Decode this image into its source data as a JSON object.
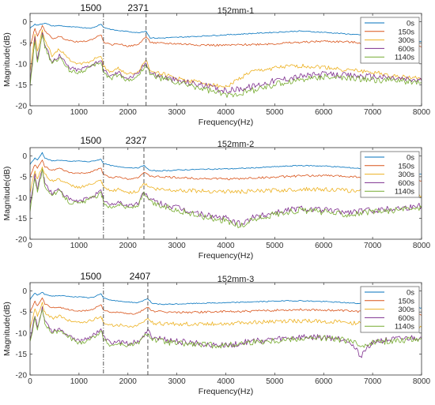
{
  "chart_data": [
    {
      "type": "line",
      "title": "152mm-1",
      "xlabel": "Frequency(Hz)",
      "ylabel": "Magnitude(dB)",
      "xlim": [
        0,
        8000
      ],
      "ylim": [
        -20,
        2
      ],
      "xticks": [
        "0",
        "1000",
        "2000",
        "3000",
        "4000",
        "5000",
        "6000",
        "7000",
        "8000"
      ],
      "yticks": [
        "0",
        "-5",
        "-10",
        "-15",
        "-20"
      ],
      "legend_position": "top-right",
      "markers": [
        {
          "x": 1500,
          "label": "1500",
          "style": "dashdot"
        },
        {
          "x": 2371,
          "label": "2371",
          "style": "dashed"
        }
      ],
      "x": [
        0,
        100,
        150,
        250,
        300,
        450,
        600,
        800,
        1000,
        1200,
        1300,
        1450,
        1500,
        1650,
        1800,
        2000,
        2200,
        2371,
        2450,
        2600,
        3000,
        3500,
        4000,
        4500,
        5000,
        5500,
        6000,
        6500,
        7000,
        7500,
        8000
      ],
      "series": [
        {
          "name": "0s",
          "color": "#0072BD",
          "values": [
            -1.5,
            -0.6,
            -0.8,
            -0.5,
            -0.3,
            -1.0,
            -0.9,
            -1.2,
            -1.3,
            -1.5,
            -1.4,
            -0.5,
            -1.3,
            -1.8,
            -2.1,
            -2.3,
            -2.6,
            -2.2,
            -3.8,
            -3.9,
            -3.7,
            -3.4,
            -3.1,
            -2.8,
            -2.5,
            -2.2,
            -2.5,
            -2.9,
            -3.4,
            -4.0,
            -4.6
          ]
        },
        {
          "name": "150s",
          "color": "#D95319",
          "values": [
            -6.0,
            -1.5,
            -3.5,
            -1.0,
            -2.0,
            -4.0,
            -3.5,
            -4.5,
            -4.8,
            -4.5,
            -4.0,
            -3.0,
            -4.8,
            -5.5,
            -5.2,
            -5.8,
            -5.5,
            -3.5,
            -4.8,
            -5.1,
            -5.2,
            -5.5,
            -5.6,
            -5.4,
            -5.2,
            -4.9,
            -4.6,
            -4.8,
            -5.2,
            -5.6,
            -6.0
          ]
        },
        {
          "name": "300s",
          "color": "#EDB120",
          "values": [
            -12.0,
            -3.0,
            -7.0,
            -2.0,
            -4.5,
            -8.0,
            -6.5,
            -9.0,
            -10.0,
            -9.5,
            -9.0,
            -8.0,
            -10.5,
            -12.0,
            -11.0,
            -12.5,
            -12.0,
            -9.0,
            -11.5,
            -12.0,
            -13.5,
            -14.5,
            -15.5,
            -12.0,
            -11.0,
            -10.5,
            -10.8,
            -11.5,
            -12.0,
            -13.0,
            -13.5
          ]
        },
        {
          "name": "600s",
          "color": "#7E2F8E",
          "values": [
            -14.0,
            -4.0,
            -9.0,
            -2.5,
            -5.5,
            -9.5,
            -8.0,
            -11.0,
            -11.5,
            -10.5,
            -10.0,
            -9.0,
            -11.5,
            -13.0,
            -12.0,
            -13.5,
            -12.5,
            -9.5,
            -12.0,
            -12.8,
            -14.0,
            -15.0,
            -16.5,
            -15.5,
            -14.0,
            -13.0,
            -12.5,
            -12.8,
            -13.0,
            -13.5,
            -14.0
          ]
        },
        {
          "name": "1140s",
          "color": "#77AC30",
          "values": [
            -15.0,
            -4.5,
            -9.5,
            -2.8,
            -6.0,
            -10.0,
            -8.5,
            -11.5,
            -12.0,
            -11.0,
            -10.5,
            -9.5,
            -12.0,
            -13.5,
            -12.5,
            -14.0,
            -13.0,
            -10.0,
            -12.5,
            -13.2,
            -14.5,
            -15.8,
            -17.5,
            -16.5,
            -15.0,
            -13.8,
            -13.0,
            -13.5,
            -13.8,
            -14.0,
            -14.5
          ]
        }
      ]
    },
    {
      "type": "line",
      "title": "152mm-2",
      "xlabel": "Frequency(Hz)",
      "ylabel": "Magnitude(dB)",
      "xlim": [
        0,
        8000
      ],
      "ylim": [
        -20,
        2
      ],
      "xticks": [
        "0",
        "1000",
        "2000",
        "3000",
        "4000",
        "5000",
        "6000",
        "7000",
        "8000"
      ],
      "yticks": [
        "0",
        "-5",
        "-10",
        "-15",
        "-20"
      ],
      "legend_position": "top-right",
      "markers": [
        {
          "x": 1500,
          "label": "1500",
          "style": "dashdot"
        },
        {
          "x": 2327,
          "label": "2327",
          "style": "dashed"
        }
      ],
      "x": [
        0,
        100,
        150,
        250,
        300,
        450,
        600,
        800,
        1000,
        1200,
        1300,
        1450,
        1500,
        1650,
        1800,
        2000,
        2200,
        2327,
        2450,
        2600,
        3000,
        3500,
        4000,
        4300,
        4500,
        5000,
        5500,
        6000,
        6500,
        7000,
        7500,
        8000
      ],
      "series": [
        {
          "name": "0s",
          "color": "#0072BD",
          "values": [
            -2.0,
            -0.5,
            -1.0,
            0.8,
            -0.5,
            -1.2,
            -1.0,
            -1.3,
            -1.2,
            -1.4,
            -1.2,
            -0.8,
            -1.8,
            -2.3,
            -2.6,
            -2.8,
            -2.9,
            -2.3,
            -3.5,
            -3.6,
            -3.4,
            -3.2,
            -3.1,
            -3.0,
            -2.9,
            -2.6,
            -2.3,
            -2.4,
            -2.8,
            -3.2,
            -3.8,
            -4.4
          ]
        },
        {
          "name": "150s",
          "color": "#D95319",
          "values": [
            -5.0,
            -2.0,
            -3.0,
            -1.0,
            -2.5,
            -3.5,
            -3.0,
            -4.0,
            -4.2,
            -4.0,
            -3.5,
            -3.0,
            -4.5,
            -5.2,
            -5.0,
            -5.5,
            -5.2,
            -4.0,
            -4.8,
            -5.0,
            -5.2,
            -5.4,
            -5.5,
            -5.5,
            -5.3,
            -5.1,
            -4.8,
            -4.7,
            -4.9,
            -5.2,
            -5.6,
            -6.0
          ]
        },
        {
          "name": "300s",
          "color": "#EDB120",
          "values": [
            -9.0,
            -3.5,
            -5.5,
            -2.5,
            -4.5,
            -6.0,
            -5.5,
            -7.0,
            -7.5,
            -7.0,
            -6.5,
            -6.0,
            -7.5,
            -8.5,
            -8.0,
            -8.8,
            -8.5,
            -6.5,
            -7.5,
            -8.0,
            -8.2,
            -8.4,
            -8.5,
            -8.6,
            -8.5,
            -8.3,
            -8.0,
            -8.0,
            -8.3,
            -8.8,
            -9.2,
            -9.6
          ]
        },
        {
          "name": "600s",
          "color": "#7E2F8E",
          "values": [
            -12.0,
            -4.5,
            -8.0,
            -3.0,
            -6.5,
            -9.0,
            -8.0,
            -10.5,
            -11.0,
            -10.0,
            -9.5,
            -8.5,
            -10.5,
            -12.0,
            -11.0,
            -12.0,
            -11.5,
            -8.5,
            -10.5,
            -11.2,
            -12.5,
            -14.0,
            -15.0,
            -16.5,
            -15.0,
            -13.5,
            -12.5,
            -13.0,
            -13.5,
            -13.0,
            -12.5,
            -12.0
          ]
        },
        {
          "name": "1140s",
          "color": "#77AC30",
          "values": [
            -13.0,
            -5.0,
            -8.5,
            -3.5,
            -7.0,
            -9.5,
            -8.5,
            -11.0,
            -11.5,
            -10.5,
            -10.0,
            -9.0,
            -11.0,
            -12.5,
            -11.5,
            -12.5,
            -12.0,
            -9.0,
            -11.0,
            -11.8,
            -13.0,
            -14.5,
            -15.5,
            -17.0,
            -15.5,
            -14.0,
            -13.0,
            -13.5,
            -14.0,
            -13.5,
            -13.0,
            -12.5
          ]
        }
      ]
    },
    {
      "type": "line",
      "title": "152mm-3",
      "xlabel": "Frequency(Hz)",
      "ylabel": "Magnitude(dB)",
      "xlim": [
        0,
        8000
      ],
      "ylim": [
        -20,
        2
      ],
      "xticks": [
        "0",
        "1000",
        "2000",
        "3000",
        "4000",
        "5000",
        "6000",
        "7000",
        "8000"
      ],
      "yticks": [
        "0",
        "-5",
        "-10",
        "-15",
        "-20"
      ],
      "legend_position": "top-right",
      "markers": [
        {
          "x": 1500,
          "label": "1500",
          "style": "dashdot"
        },
        {
          "x": 2407,
          "label": "2407",
          "style": "dashed"
        }
      ],
      "x": [
        0,
        100,
        150,
        250,
        300,
        450,
        600,
        800,
        1000,
        1200,
        1300,
        1450,
        1500,
        1650,
        1800,
        2000,
        2200,
        2407,
        2500,
        2700,
        3000,
        3500,
        4000,
        4500,
        5000,
        5500,
        6000,
        6500,
        6750,
        7000,
        7500,
        8000
      ],
      "series": [
        {
          "name": "0s",
          "color": "#0072BD",
          "values": [
            -2.0,
            -0.5,
            -1.0,
            -0.3,
            -0.8,
            -1.2,
            -1.1,
            -1.3,
            -1.4,
            -1.6,
            -1.5,
            -0.6,
            -1.6,
            -2.2,
            -2.4,
            -2.6,
            -2.8,
            -1.8,
            -3.0,
            -3.2,
            -3.1,
            -2.9,
            -2.8,
            -2.6,
            -2.4,
            -2.3,
            -2.5,
            -2.8,
            -3.0,
            -3.2,
            -3.6,
            -4.0
          ]
        },
        {
          "name": "150s",
          "color": "#D95319",
          "values": [
            -5.0,
            -2.5,
            -3.5,
            -1.5,
            -3.0,
            -4.0,
            -3.8,
            -4.5,
            -4.8,
            -4.6,
            -4.2,
            -3.2,
            -4.5,
            -5.2,
            -5.0,
            -5.5,
            -5.3,
            -3.8,
            -4.8,
            -5.0,
            -5.1,
            -5.0,
            -4.9,
            -4.8,
            -4.6,
            -4.4,
            -4.5,
            -4.7,
            -4.9,
            -5.1,
            -5.4,
            -5.8
          ]
        },
        {
          "name": "300s",
          "color": "#EDB120",
          "values": [
            -9.0,
            -4.0,
            -6.0,
            -3.0,
            -5.0,
            -6.5,
            -6.0,
            -7.0,
            -7.5,
            -7.2,
            -6.8,
            -6.0,
            -7.5,
            -8.2,
            -8.0,
            -8.5,
            -8.3,
            -6.5,
            -7.5,
            -7.8,
            -7.9,
            -7.8,
            -7.7,
            -7.5,
            -7.3,
            -7.1,
            -7.2,
            -7.5,
            -7.7,
            -7.9,
            -8.2,
            -8.6
          ]
        },
        {
          "name": "600s",
          "color": "#7E2F8E",
          "values": [
            -12.0,
            -6.0,
            -8.5,
            -4.0,
            -7.0,
            -9.5,
            -9.0,
            -10.5,
            -12.0,
            -11.0,
            -10.5,
            -9.0,
            -11.0,
            -12.5,
            -12.0,
            -12.5,
            -12.0,
            -9.5,
            -11.0,
            -11.5,
            -12.0,
            -12.5,
            -13.0,
            -12.0,
            -11.5,
            -11.0,
            -11.0,
            -11.5,
            -15.5,
            -12.0,
            -11.5,
            -11.0
          ]
        },
        {
          "name": "1140s",
          "color": "#77AC30",
          "values": [
            -12.5,
            -6.5,
            -9.0,
            -4.5,
            -7.5,
            -10.0,
            -9.5,
            -11.0,
            -12.5,
            -11.5,
            -11.0,
            -9.5,
            -11.5,
            -13.0,
            -12.5,
            -13.0,
            -12.5,
            -10.0,
            -11.5,
            -12.0,
            -12.5,
            -12.8,
            -13.0,
            -12.2,
            -11.8,
            -11.3,
            -11.2,
            -11.8,
            -13.0,
            -12.2,
            -11.8,
            -11.2
          ]
        }
      ]
    }
  ]
}
